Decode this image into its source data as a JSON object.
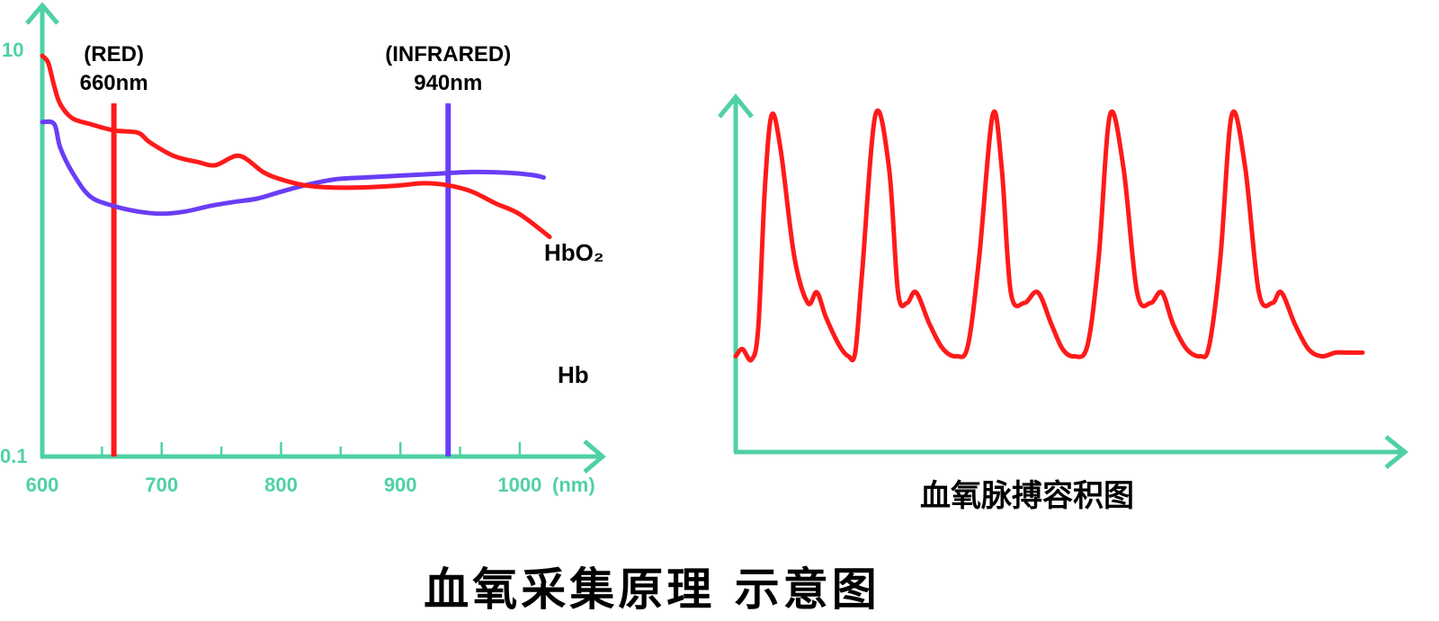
{
  "chart_data": [
    {
      "type": "line",
      "title": "",
      "xlabel": "",
      "ylabel": "",
      "x_unit": "(nm)",
      "xlim": [
        600,
        1040
      ],
      "y_scale": "log",
      "ylim": [
        0.1,
        10
      ],
      "y_ticks": [
        "10",
        "0.1"
      ],
      "x_ticks": [
        "600",
        "700",
        "800",
        "900",
        "1000"
      ],
      "grid": false,
      "colors": {
        "axis": "#4fd1a4",
        "hb": "#ff1a1a",
        "hbo2": "#6a3df5",
        "red_marker": "#ff1a1a",
        "ir_marker": "#6a3df5"
      },
      "markers": [
        {
          "x": 660,
          "label_top": "(RED)",
          "label_bottom": "660nm",
          "color": "#ff1a1a"
        },
        {
          "x": 940,
          "label_top": "(INFRARED)",
          "label_bottom": "940nm",
          "color": "#6a3df5"
        }
      ],
      "series": [
        {
          "name": "Hb",
          "color": "#ff1a1a",
          "x": [
            600,
            605,
            610,
            615,
            625,
            640,
            660,
            680,
            690,
            710,
            730,
            745,
            765,
            785,
            800,
            820,
            840,
            870,
            900,
            920,
            940,
            960,
            980,
            1000,
            1025
          ],
          "y": [
            9.3,
            8.6,
            6.6,
            5.4,
            4.6,
            4.3,
            4.0,
            3.9,
            3.5,
            3.0,
            2.8,
            2.7,
            3.0,
            2.5,
            2.3,
            2.15,
            2.1,
            2.1,
            2.15,
            2.2,
            2.15,
            2.0,
            1.75,
            1.55,
            1.2
          ]
        },
        {
          "name": "HbO₂",
          "color": "#6a3df5",
          "x": [
            600,
            610,
            615,
            625,
            640,
            660,
            680,
            700,
            720,
            740,
            760,
            780,
            800,
            820,
            845,
            870,
            900,
            930,
            960,
            990,
            1010,
            1020
          ],
          "y": [
            4.4,
            4.3,
            3.3,
            2.5,
            1.9,
            1.7,
            1.6,
            1.56,
            1.6,
            1.7,
            1.78,
            1.85,
            2.0,
            2.15,
            2.3,
            2.35,
            2.4,
            2.45,
            2.5,
            2.48,
            2.42,
            2.35
          ]
        }
      ]
    },
    {
      "type": "line",
      "title": "血氧脉搏容积图",
      "xlabel": "",
      "ylabel": "",
      "grid": false,
      "xlim": [
        0,
        14
      ],
      "ylim": [
        0,
        1
      ],
      "series": [
        {
          "name": "",
          "color": "#ff1a1a",
          "x": [
            0,
            0.15,
            0.35,
            0.5,
            0.65,
            0.8,
            1.0,
            1.3,
            1.6,
            1.8,
            2.0,
            2.3,
            2.5,
            2.65,
            2.8,
            3.1,
            3.4,
            3.6,
            3.8,
            4.0,
            4.3,
            4.6,
            4.9,
            5.15,
            5.4,
            5.7,
            5.9,
            6.1,
            6.4,
            6.7,
            7.0,
            7.25,
            7.5,
            7.8,
            8.05,
            8.3,
            8.6,
            8.9,
            9.2,
            9.45,
            9.7,
            10.0,
            10.3,
            10.5,
            10.75,
            11.0,
            11.3,
            11.6,
            11.9,
            12.1,
            12.4,
            12.7,
            13.0,
            13.3,
            13.6,
            13.9
          ],
          "y": [
            0.27,
            0.29,
            0.26,
            0.35,
            0.75,
            0.95,
            0.85,
            0.55,
            0.42,
            0.45,
            0.38,
            0.3,
            0.27,
            0.28,
            0.5,
            0.95,
            0.8,
            0.45,
            0.42,
            0.45,
            0.36,
            0.29,
            0.27,
            0.3,
            0.55,
            0.95,
            0.8,
            0.45,
            0.42,
            0.45,
            0.36,
            0.29,
            0.27,
            0.3,
            0.55,
            0.95,
            0.8,
            0.45,
            0.42,
            0.45,
            0.36,
            0.29,
            0.27,
            0.3,
            0.55,
            0.95,
            0.8,
            0.45,
            0.42,
            0.45,
            0.36,
            0.29,
            0.27,
            0.28,
            0.28,
            0.28
          ]
        }
      ]
    }
  ],
  "caption": "血氧采集原理 示意图"
}
